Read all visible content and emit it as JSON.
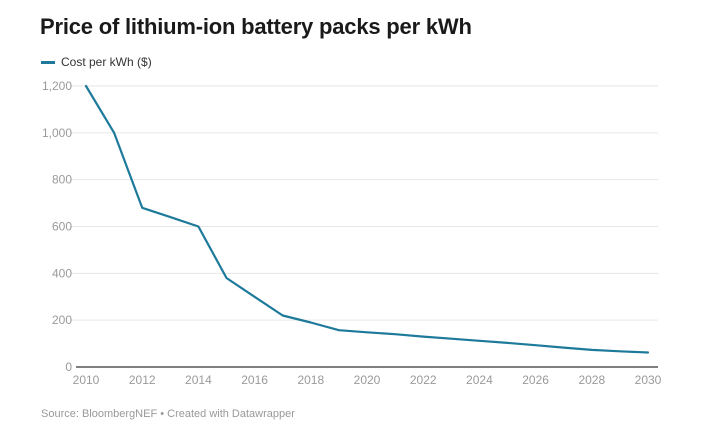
{
  "title": "Price of lithium-ion battery packs per kWh",
  "legend": {
    "label": "Cost per kWh ($)"
  },
  "source": "Source: BloombergNEF • Created with Datawrapper",
  "colors": {
    "line": "#1d7a9a",
    "grid": "#e6e6e6",
    "baseline": "#333333"
  },
  "chart_data": {
    "type": "line",
    "title": "Price of lithium-ion battery packs per kWh",
    "xlabel": "",
    "ylabel": "",
    "xlim": [
      2010,
      2030
    ],
    "ylim": [
      0,
      1200
    ],
    "grid": true,
    "legend_position": "top-left",
    "x_ticks": [
      2010,
      2012,
      2014,
      2016,
      2018,
      2020,
      2022,
      2024,
      2026,
      2028,
      2030
    ],
    "y_ticks": [
      0,
      200,
      400,
      600,
      800,
      1000,
      1200
    ],
    "y_tick_labels": [
      "0",
      "200",
      "400",
      "600",
      "800",
      "1,000",
      "1,200"
    ],
    "series": [
      {
        "name": "Cost per kWh ($)",
        "x": [
          2010,
          2011,
          2012,
          2013,
          2014,
          2015,
          2016,
          2017,
          2018,
          2019,
          2020,
          2021,
          2022,
          2023,
          2024,
          2025,
          2026,
          2027,
          2028,
          2029,
          2030
        ],
        "values": [
          1200,
          1000,
          680,
          640,
          600,
          380,
          300,
          220,
          190,
          157,
          148,
          140,
          130,
          121,
          112,
          103,
          93,
          83,
          73,
          67,
          62
        ]
      }
    ]
  }
}
